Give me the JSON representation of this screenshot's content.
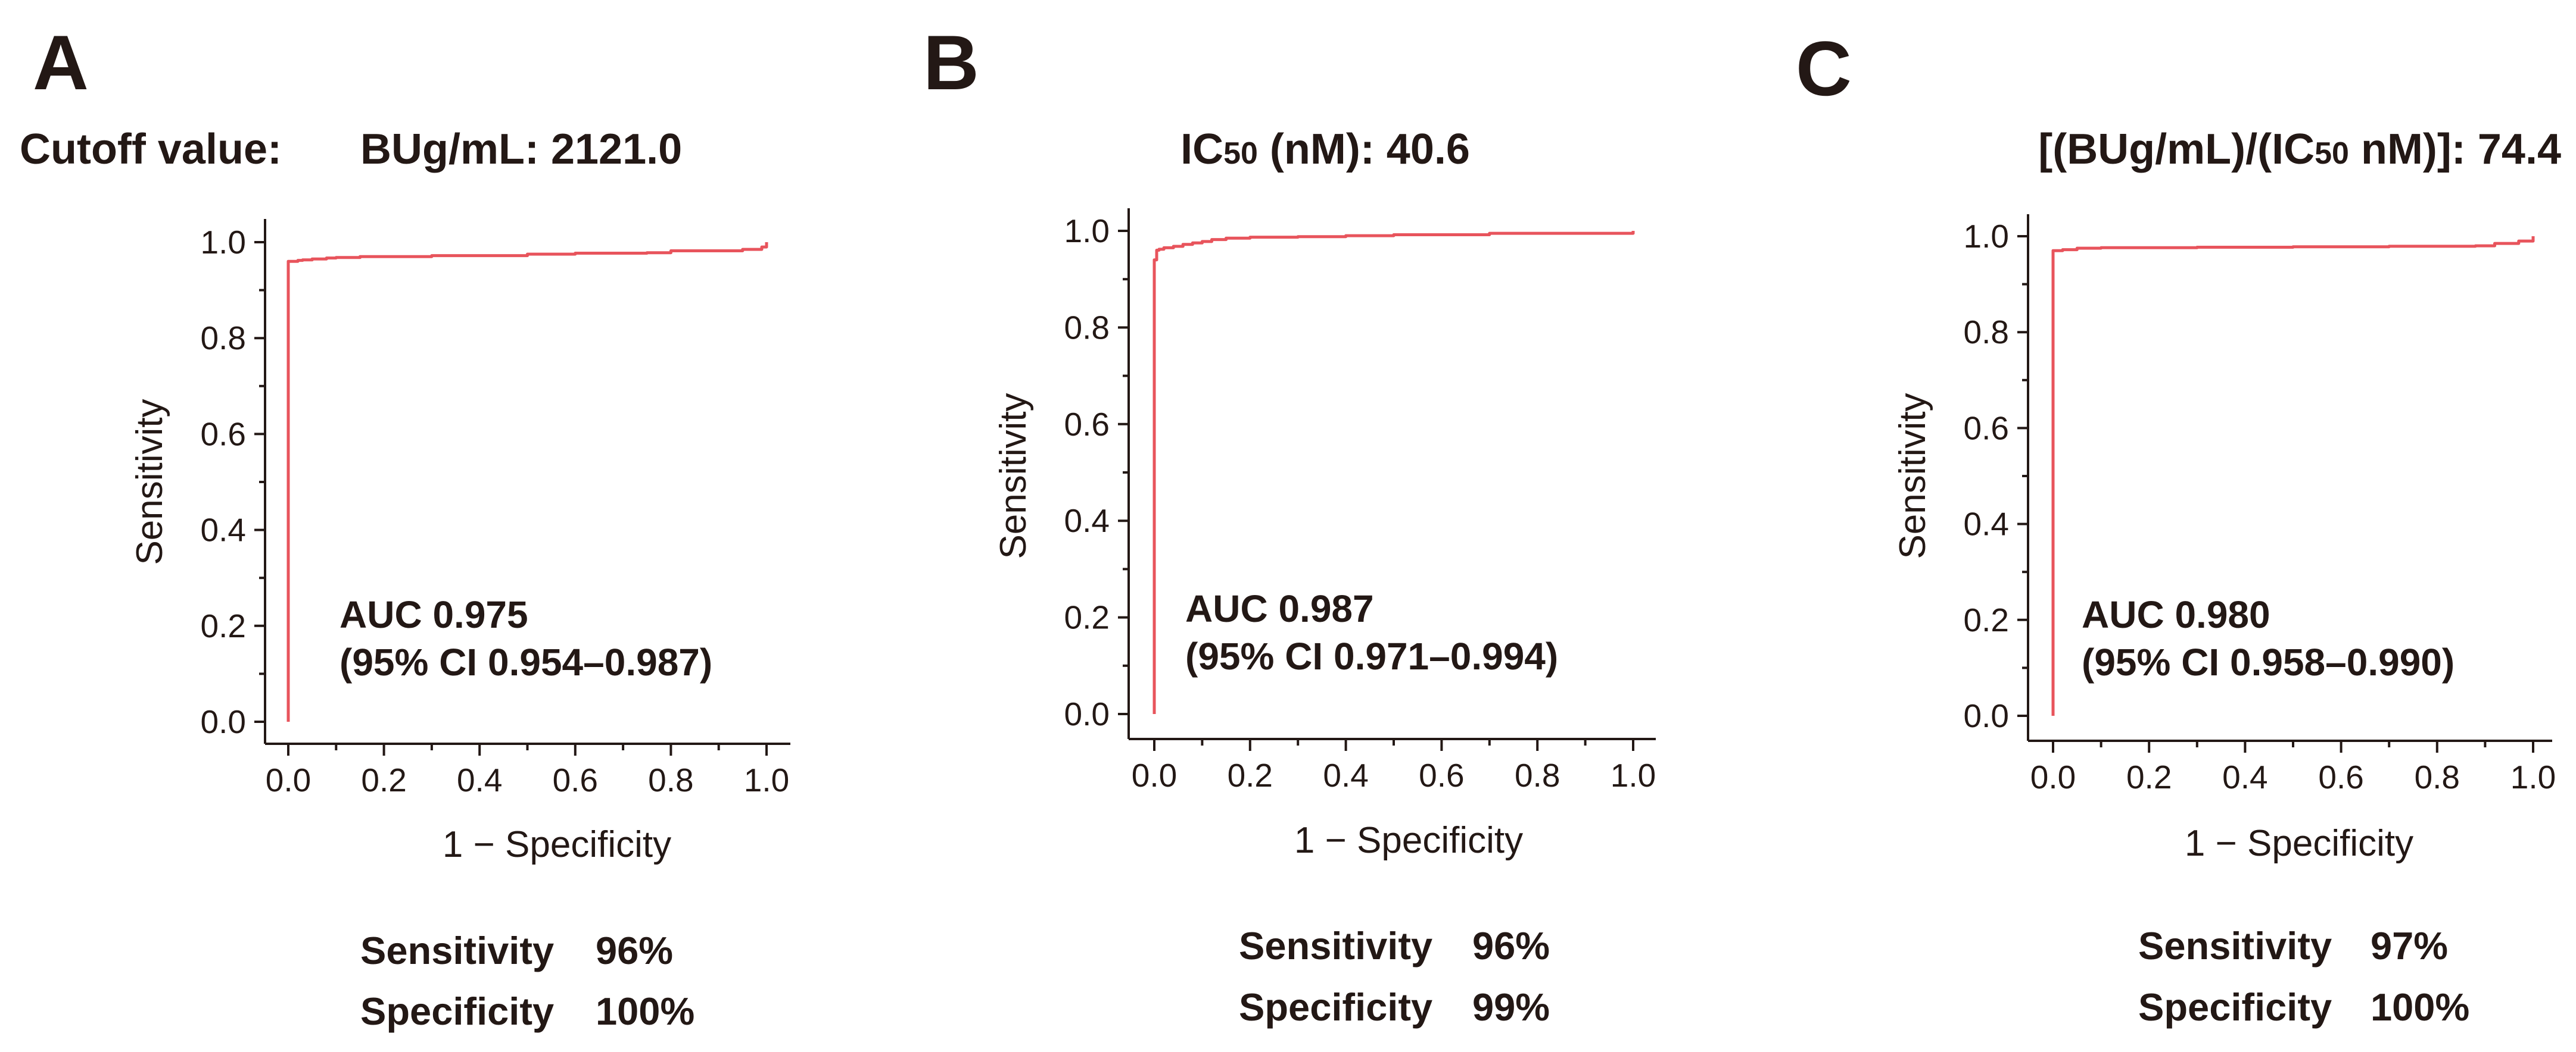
{
  "figure": {
    "line_color": "#e8545c",
    "text_color": "#231815"
  },
  "chart_data": [
    {
      "type": "line",
      "panel": "A",
      "cutoff_prefix": "Cutoff value:",
      "title": "BUg/mL: 2121.0",
      "xlabel": "1 − Specificity",
      "ylabel": "Sensitivity",
      "xlim": [
        0,
        1
      ],
      "ylim": [
        0,
        1
      ],
      "xticks": [
        0.0,
        0.2,
        0.4,
        0.6,
        0.8,
        1.0
      ],
      "yticks": [
        0.0,
        0.2,
        0.4,
        0.6,
        0.8,
        1.0
      ],
      "tick_labels_x": [
        "0.0",
        "0.2",
        "0.4",
        "0.6",
        "0.8",
        "1.0"
      ],
      "tick_labels_y": [
        "0.0",
        "0.2",
        "0.4",
        "0.6",
        "0.8",
        "1.0"
      ],
      "series": [
        {
          "name": "ROC",
          "x": [
            0,
            0,
            0.01,
            0.02,
            0.03,
            0.05,
            0.08,
            0.1,
            0.15,
            0.3,
            0.5,
            0.6,
            0.75,
            0.8,
            0.95,
            0.99,
            1.0
          ],
          "y": [
            0,
            0.96,
            0.96,
            0.962,
            0.963,
            0.965,
            0.967,
            0.968,
            0.97,
            0.972,
            0.975,
            0.977,
            0.978,
            0.982,
            0.985,
            0.99,
            1.0
          ]
        }
      ],
      "auc_line1": "AUC 0.975",
      "auc_line2": "(95% CI 0.954–0.987)",
      "sens_label": "Sensitivity",
      "sens_value": "96%",
      "spec_label": "Specificity",
      "spec_value": "100%"
    },
    {
      "type": "line",
      "panel": "B",
      "cutoff_prefix": "",
      "title_main": "IC",
      "title_sub": "50",
      "title_rest": " (nM): 40.6",
      "xlabel": "1 − Specificity",
      "ylabel": "Sensitivity",
      "xlim": [
        0,
        1
      ],
      "ylim": [
        0,
        1
      ],
      "xticks": [
        0.0,
        0.2,
        0.4,
        0.6,
        0.8,
        1.0
      ],
      "yticks": [
        0.0,
        0.2,
        0.4,
        0.6,
        0.8,
        1.0
      ],
      "tick_labels_x": [
        "0.0",
        "0.2",
        "0.4",
        "0.6",
        "0.8",
        "1.0"
      ],
      "tick_labels_y": [
        "0.0",
        "0.2",
        "0.4",
        "0.6",
        "0.8",
        "1.0"
      ],
      "series": [
        {
          "name": "ROC",
          "x": [
            0,
            0,
            0.005,
            0.01,
            0.02,
            0.04,
            0.06,
            0.08,
            0.1,
            0.12,
            0.15,
            0.2,
            0.3,
            0.4,
            0.5,
            0.7,
            1.0
          ],
          "y": [
            0,
            0.94,
            0.96,
            0.962,
            0.965,
            0.968,
            0.972,
            0.975,
            0.978,
            0.982,
            0.985,
            0.987,
            0.988,
            0.99,
            0.992,
            0.995,
            1.0
          ]
        }
      ],
      "auc_line1": "AUC 0.987",
      "auc_line2": "(95% CI 0.971–0.994)",
      "sens_label": "Sensitivity",
      "sens_value": "96%",
      "spec_label": "Specificity",
      "spec_value": "99%"
    },
    {
      "type": "line",
      "panel": "C",
      "cutoff_prefix": "",
      "title_main": "[(BUg/mL)/(IC",
      "title_sub": "50",
      "title_rest": " nM)]: 74.4",
      "xlabel": "1 − Specificity",
      "ylabel": "Sensitivity",
      "xlim": [
        0,
        1
      ],
      "ylim": [
        0,
        1
      ],
      "xticks": [
        0.0,
        0.2,
        0.4,
        0.6,
        0.8,
        1.0
      ],
      "yticks": [
        0.0,
        0.2,
        0.4,
        0.6,
        0.8,
        1.0
      ],
      "tick_labels_x": [
        "0.0",
        "0.2",
        "0.4",
        "0.6",
        "0.8",
        "1.0"
      ],
      "tick_labels_y": [
        "0.0",
        "0.2",
        "0.4",
        "0.6",
        "0.8",
        "1.0"
      ],
      "series": [
        {
          "name": "ROC",
          "x": [
            0,
            0,
            0.02,
            0.05,
            0.1,
            0.3,
            0.5,
            0.7,
            0.88,
            0.92,
            0.97,
            1.0
          ],
          "y": [
            0,
            0.97,
            0.972,
            0.975,
            0.976,
            0.977,
            0.978,
            0.979,
            0.98,
            0.985,
            0.99,
            1.0
          ]
        }
      ],
      "auc_line1": "AUC 0.980",
      "auc_line2": "(95% CI 0.958–0.990)",
      "sens_label": "Sensitivity",
      "sens_value": "97%",
      "spec_label": "Specificity",
      "spec_value": "100%"
    }
  ]
}
